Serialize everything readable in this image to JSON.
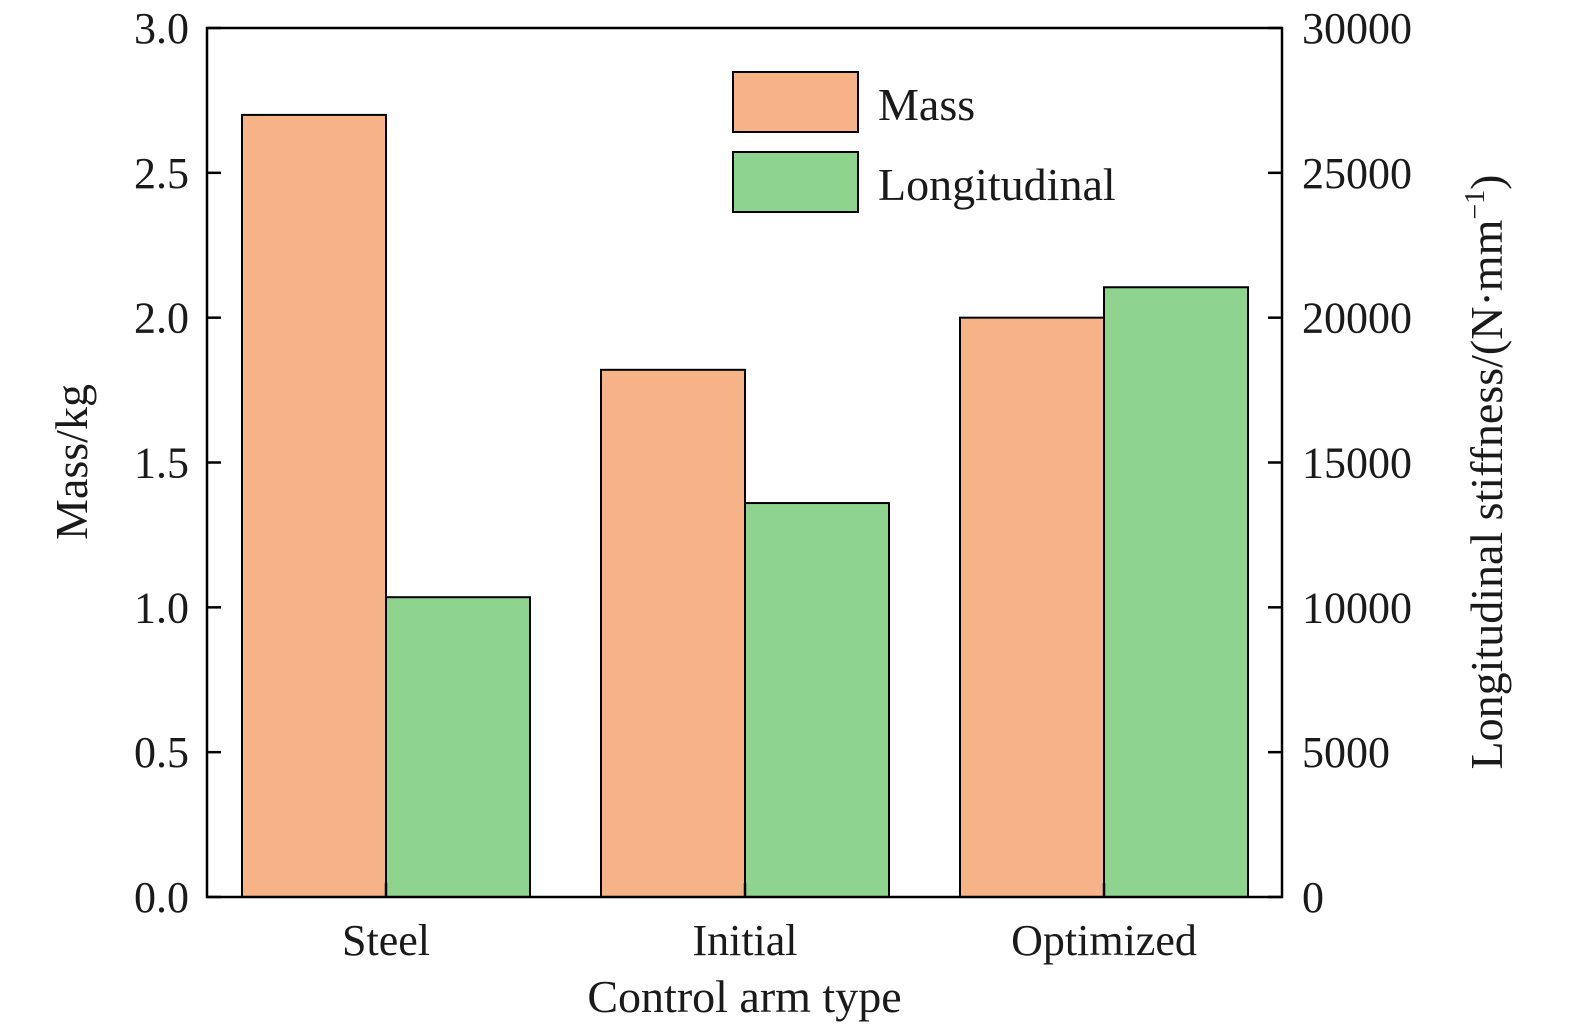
{
  "chart_data": {
    "type": "bar",
    "categories": [
      "Steel",
      "Initial",
      "Optimized"
    ],
    "series": [
      {
        "name": "Mass",
        "axis": "left",
        "color": "#F5B387",
        "values": [
          2.7,
          1.82,
          2.0
        ]
      },
      {
        "name": "Longitudinal",
        "axis": "right",
        "color": "#8ED48E",
        "values": [
          10350,
          13600,
          21050
        ]
      }
    ],
    "xlabel": "Control arm type",
    "ylabel": "Mass/kg",
    "y2label_main": "Longitudinal stiffness/(N·mm",
    "y2label_sup": "−1",
    "y2label_close": ")",
    "ylim": [
      0,
      3.0
    ],
    "y2lim": [
      0,
      30000
    ],
    "yticks": [
      "0.0",
      "0.5",
      "1.0",
      "1.5",
      "2.0",
      "2.5",
      "3.0"
    ],
    "y2ticks": [
      "0",
      "5000",
      "10000",
      "15000",
      "20000",
      "25000",
      "30000"
    ],
    "legend_position": "top-center",
    "grid": false
  }
}
